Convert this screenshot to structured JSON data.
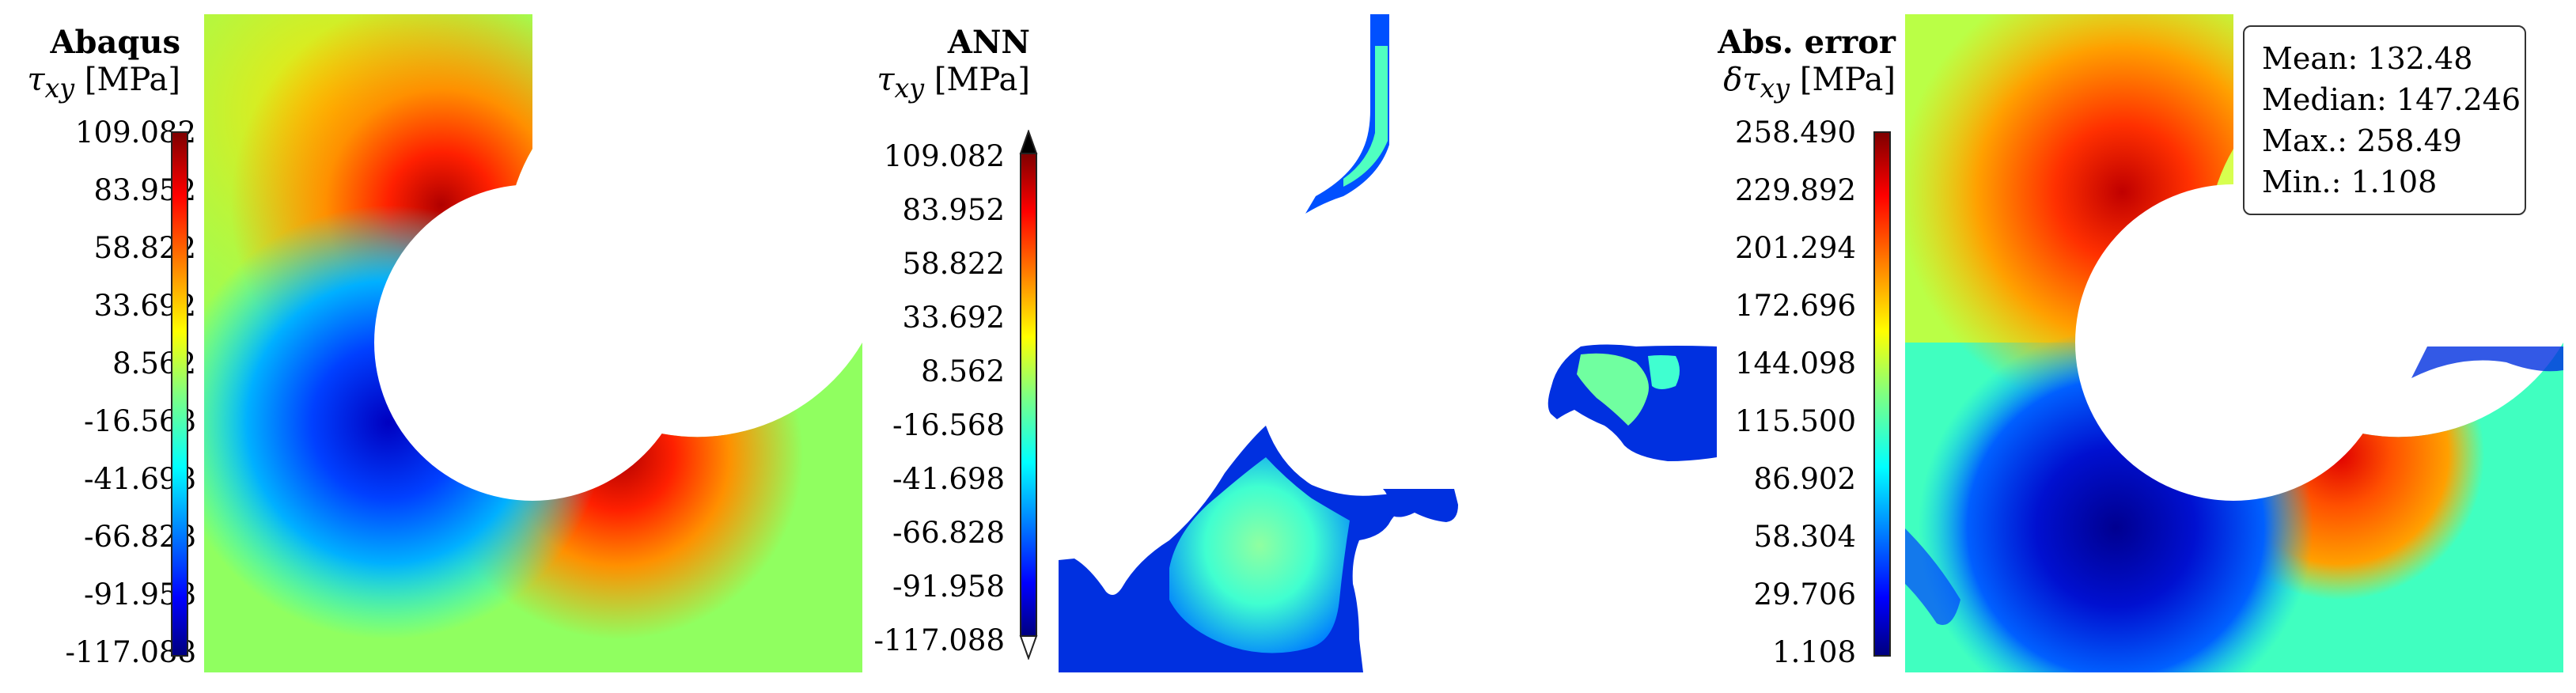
{
  "panels": [
    {
      "title": "Abaqus",
      "quantity_symbol": "τ",
      "quantity_sub": "xy",
      "quantity_unit": "[MPa]",
      "ticks": [
        "109.082",
        "83.952",
        "58.822",
        "33.692",
        "8.562",
        "-16.568",
        "-41.698",
        "-66.828",
        "-91.958",
        "-117.088"
      ]
    },
    {
      "title": "ANN",
      "quantity_symbol": "τ",
      "quantity_sub": "xy",
      "quantity_unit": "[MPa]",
      "ticks": [
        "109.082",
        "83.952",
        "58.822",
        "33.692",
        "8.562",
        "-16.568",
        "-41.698",
        "-66.828",
        "-91.958",
        "-117.088"
      ]
    },
    {
      "title": "Abs. error",
      "quantity_symbol": "δτ",
      "quantity_sub": "xy",
      "quantity_unit": "[MPa]",
      "ticks": [
        "258.490",
        "229.892",
        "201.294",
        "172.696",
        "144.098",
        "115.500",
        "86.902",
        "58.304",
        "29.706",
        "1.108"
      ]
    }
  ],
  "stats": {
    "mean": "Mean: 132.48",
    "median": "Median: 147.246",
    "max": "Max.: 258.49",
    "min": "Min.: 1.108"
  },
  "colors": {
    "colormap": [
      "#00007f",
      "#0000ff",
      "#0080ff",
      "#00ffff",
      "#80ff80",
      "#ffff00",
      "#ff8000",
      "#ff0000",
      "#7f0000"
    ],
    "background": "#ffffff"
  }
}
